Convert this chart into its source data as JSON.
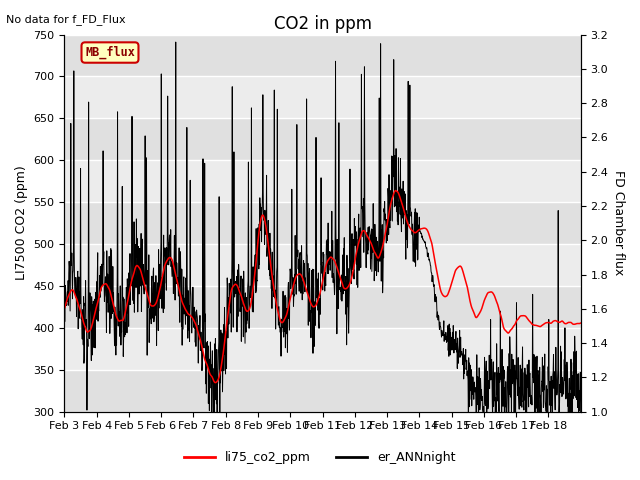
{
  "title": "CO2 in ppm",
  "top_left_text": "No data for f_FD_Flux",
  "ylabel_left": "LI7500 CO2 (ppm)",
  "ylabel_right": "FD Chamber flux",
  "ylim_left": [
    300,
    750
  ],
  "ylim_right": [
    1.0,
    3.2
  ],
  "yticks_left": [
    300,
    350,
    400,
    450,
    500,
    550,
    600,
    650,
    700,
    750
  ],
  "yticks_right": [
    1.0,
    1.2,
    1.4,
    1.6,
    1.8,
    2.0,
    2.2,
    2.4,
    2.6,
    2.8,
    3.0,
    3.2
  ],
  "xtick_labels": [
    "Feb 3",
    "Feb 4",
    "Feb 5",
    "Feb 6",
    "Feb 7",
    "Feb 8",
    "Feb 9",
    "Feb 10",
    "Feb 11",
    "Feb 12",
    "Feb 13",
    "Feb 14",
    "Feb 15",
    "Feb 16",
    "Feb 17",
    "Feb 18"
  ],
  "legend_labels": [
    "li75_co2_ppm",
    "er_ANNnight"
  ],
  "legend_colors": [
    "red",
    "black"
  ],
  "inset_label": "MB_flux",
  "inset_color": "#ffffc0",
  "inset_border": "#cc0000",
  "plot_bg_bands": [
    [
      650,
      750,
      "#e8e8e8"
    ],
    [
      550,
      650,
      "#f0f0f0"
    ],
    [
      450,
      550,
      "#e8e8e8"
    ],
    [
      350,
      450,
      "#f0f0f0"
    ],
    [
      300,
      350,
      "#e8e8e8"
    ]
  ],
  "bg_color": "white",
  "grid_color": "white",
  "line_color_red": "red",
  "line_color_black": "black",
  "title_fontsize": 12,
  "axis_fontsize": 9,
  "tick_fontsize": 8
}
